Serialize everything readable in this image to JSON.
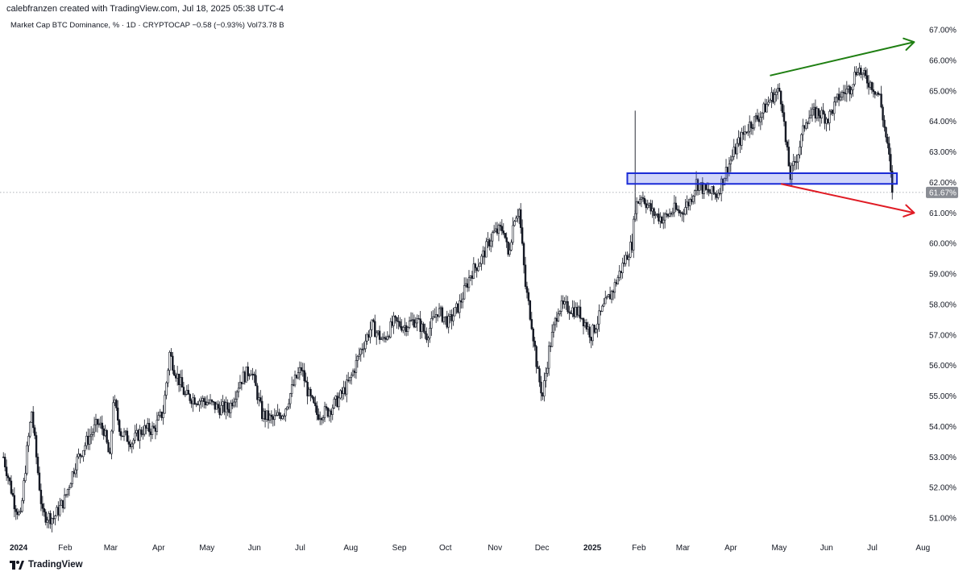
{
  "header": {
    "credit": "calebfranzen created with TradingView.com, Jul 18, 2025 05:38 UTC-4"
  },
  "symbol": {
    "name": "Market Cap BTC Dominance, % · 1D · CRYPTOCAP",
    "change": "−0.58 (−0.93%)",
    "volume": "Vol73.78 B"
  },
  "footer": {
    "brand": "TradingView",
    "logo_icon": "tradingview-logo-icon"
  },
  "colors": {
    "candle": "#131722",
    "zone_fill": "rgba(70,90,230,0.25)",
    "zone_stroke": "#1a2bd6",
    "up_arrow": "#1f7f12",
    "down_arrow": "#e01b24",
    "price_tag_bg": "#8a8d94"
  },
  "chart_data": {
    "type": "candlestick",
    "title": "Market Cap BTC Dominance, %",
    "interval": "1D",
    "source": "CRYPTOCAP",
    "current_price_label": "61.67%",
    "current_price": 61.67,
    "ylim": [
      50.6,
      67.3
    ],
    "x_ticks": [
      {
        "label": "2024",
        "date": "2024-01-01",
        "bold": true
      },
      {
        "label": "Feb",
        "date": "2024-02-01"
      },
      {
        "label": "Mar",
        "date": "2024-03-01"
      },
      {
        "label": "Apr",
        "date": "2024-04-01"
      },
      {
        "label": "May",
        "date": "2024-05-01"
      },
      {
        "label": "Jun",
        "date": "2024-06-01"
      },
      {
        "label": "Jul",
        "date": "2024-07-01"
      },
      {
        "label": "Aug",
        "date": "2024-08-01"
      },
      {
        "label": "Sep",
        "date": "2024-09-01"
      },
      {
        "label": "Oct",
        "date": "2024-10-01"
      },
      {
        "label": "Nov",
        "date": "2024-11-01"
      },
      {
        "label": "Dec",
        "date": "2024-12-01"
      },
      {
        "label": "2025",
        "date": "2025-01-01",
        "bold": true
      },
      {
        "label": "Feb",
        "date": "2025-02-01"
      },
      {
        "label": "Mar",
        "date": "2025-03-01"
      },
      {
        "label": "Apr",
        "date": "2025-04-01"
      },
      {
        "label": "May",
        "date": "2025-05-01"
      },
      {
        "label": "Jun",
        "date": "2025-06-01"
      },
      {
        "label": "Jul",
        "date": "2025-07-01"
      },
      {
        "label": "Aug",
        "date": "2025-08-01"
      }
    ],
    "y_ticks": [
      {
        "label": "51.00%",
        "value": 51
      },
      {
        "label": "52.00%",
        "value": 52
      },
      {
        "label": "53.00%",
        "value": 53
      },
      {
        "label": "54.00%",
        "value": 54
      },
      {
        "label": "55.00%",
        "value": 55
      },
      {
        "label": "56.00%",
        "value": 56
      },
      {
        "label": "57.00%",
        "value": 57
      },
      {
        "label": "58.00%",
        "value": 58
      },
      {
        "label": "59.00%",
        "value": 59
      },
      {
        "label": "60.00%",
        "value": 60
      },
      {
        "label": "61.00%",
        "value": 61
      },
      {
        "label": "62.00%",
        "value": 62
      },
      {
        "label": "63.00%",
        "value": 63
      },
      {
        "label": "64.00%",
        "value": 64
      },
      {
        "label": "65.00%",
        "value": 65
      },
      {
        "label": "66.00%",
        "value": 66
      },
      {
        "label": "67.00%",
        "value": 67
      }
    ],
    "price_path": [
      [
        "2023-12-28",
        53.0
      ],
      [
        "2024-01-04",
        51.5
      ],
      [
        "2024-01-08",
        51.0
      ],
      [
        "2024-01-12",
        53.2
      ],
      [
        "2024-01-15",
        54.5
      ],
      [
        "2024-01-19",
        52.5
      ],
      [
        "2024-01-22",
        51.1
      ],
      [
        "2024-01-29",
        51.0
      ],
      [
        "2024-02-05",
        51.6
      ],
      [
        "2024-02-12",
        52.8
      ],
      [
        "2024-02-19",
        53.5
      ],
      [
        "2024-02-26",
        54.1
      ],
      [
        "2024-03-01",
        53.9
      ],
      [
        "2024-03-05",
        52.9
      ],
      [
        "2024-03-07",
        54.9
      ],
      [
        "2024-03-12",
        53.8
      ],
      [
        "2024-03-19",
        53.5
      ],
      [
        "2024-03-26",
        53.9
      ],
      [
        "2024-04-02",
        53.9
      ],
      [
        "2024-04-08",
        54.5
      ],
      [
        "2024-04-12",
        56.4
      ],
      [
        "2024-04-15",
        55.9
      ],
      [
        "2024-04-22",
        55.0
      ],
      [
        "2024-04-29",
        54.9
      ],
      [
        "2024-05-06",
        54.8
      ],
      [
        "2024-05-13",
        54.6
      ],
      [
        "2024-05-20",
        54.6
      ],
      [
        "2024-05-27",
        55.5
      ],
      [
        "2024-06-03",
        55.9
      ],
      [
        "2024-06-10",
        54.4
      ],
      [
        "2024-06-17",
        54.2
      ],
      [
        "2024-06-24",
        54.5
      ],
      [
        "2024-07-01",
        55.5
      ],
      [
        "2024-07-05",
        55.9
      ],
      [
        "2024-07-10",
        55.0
      ],
      [
        "2024-07-15",
        54.4
      ],
      [
        "2024-07-22",
        54.5
      ],
      [
        "2024-07-29",
        54.9
      ],
      [
        "2024-08-05",
        55.5
      ],
      [
        "2024-08-12",
        56.5
      ],
      [
        "2024-08-19",
        57.3
      ],
      [
        "2024-08-26",
        56.8
      ],
      [
        "2024-09-02",
        57.4
      ],
      [
        "2024-09-09",
        57.3
      ],
      [
        "2024-09-16",
        57.5
      ],
      [
        "2024-09-23",
        57.0
      ],
      [
        "2024-09-30",
        57.8
      ],
      [
        "2024-10-07",
        57.4
      ],
      [
        "2024-10-14",
        58.0
      ],
      [
        "2024-10-21",
        59.0
      ],
      [
        "2024-10-28",
        59.5
      ],
      [
        "2024-11-04",
        60.3
      ],
      [
        "2024-11-11",
        60.5
      ],
      [
        "2024-11-14",
        59.6
      ],
      [
        "2024-11-18",
        60.9
      ],
      [
        "2024-11-21",
        61.1
      ],
      [
        "2024-11-25",
        58.6
      ],
      [
        "2024-11-29",
        57.4
      ],
      [
        "2024-12-03",
        55.7
      ],
      [
        "2024-12-06",
        55.0
      ],
      [
        "2024-12-10",
        56.5
      ],
      [
        "2024-12-16",
        57.9
      ],
      [
        "2024-12-23",
        57.9
      ],
      [
        "2024-12-30",
        57.7
      ],
      [
        "2025-01-06",
        57.0
      ],
      [
        "2025-01-13",
        57.8
      ],
      [
        "2025-01-20",
        58.5
      ],
      [
        "2025-01-27",
        59.4
      ],
      [
        "2025-02-01",
        60.0
      ],
      [
        "2025-02-03",
        61.2
      ],
      [
        "2025-02-07",
        61.6
      ],
      [
        "2025-02-14",
        61.0
      ],
      [
        "2025-02-21",
        60.8
      ],
      [
        "2025-02-28",
        61.1
      ],
      [
        "2025-03-04",
        61.0
      ],
      [
        "2025-03-10",
        61.4
      ],
      [
        "2025-03-14",
        62.0
      ],
      [
        "2025-03-20",
        61.7
      ],
      [
        "2025-03-27",
        61.6
      ],
      [
        "2025-04-03",
        62.5
      ],
      [
        "2025-04-10",
        63.3
      ],
      [
        "2025-04-17",
        63.9
      ],
      [
        "2025-04-24",
        64.2
      ],
      [
        "2025-05-01",
        64.8
      ],
      [
        "2025-05-06",
        65.0
      ],
      [
        "2025-05-08",
        64.5
      ],
      [
        "2025-05-10",
        63.3
      ],
      [
        "2025-05-13",
        62.2
      ],
      [
        "2025-05-18",
        63.0
      ],
      [
        "2025-05-23",
        64.1
      ],
      [
        "2025-05-30",
        64.3
      ],
      [
        "2025-06-06",
        64.1
      ],
      [
        "2025-06-13",
        64.8
      ],
      [
        "2025-06-20",
        65.1
      ],
      [
        "2025-06-25",
        65.8
      ],
      [
        "2025-06-28",
        65.5
      ],
      [
        "2025-07-04",
        65.2
      ],
      [
        "2025-07-09",
        64.8
      ],
      [
        "2025-07-12",
        63.8
      ],
      [
        "2025-07-15",
        62.8
      ],
      [
        "2025-07-17",
        61.67
      ]
    ],
    "annotations": {
      "support_zone": {
        "from_date": "2025-01-29",
        "to_date": "2025-07-20",
        "low": 61.95,
        "high": 62.3
      },
      "higher_high_arrow": {
        "from": [
          "2025-04-30",
          65.5
        ],
        "to": [
          "2025-07-31",
          66.6
        ]
      },
      "lower_low_arrow": {
        "from": [
          "2025-05-07",
          61.95
        ],
        "to": [
          "2025-07-31",
          61.0
        ]
      }
    }
  }
}
